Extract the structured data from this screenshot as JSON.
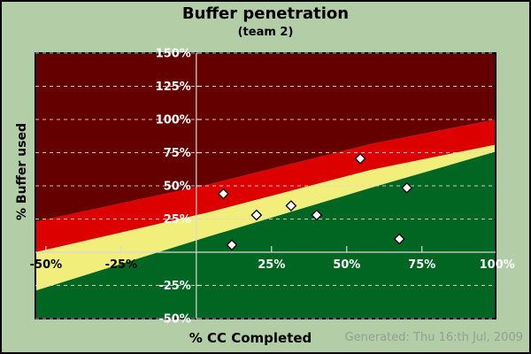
{
  "chart_data": {
    "type": "scatter",
    "title": "Buffer penetration",
    "subtitle": "(team 2)",
    "xlabel": "% CC Completed",
    "ylabel": "% Buffer used",
    "footer": "Generated: Thu 16:th Jul, 2009",
    "xlim": [
      -53.5,
      99.5
    ],
    "ylim": [
      -50,
      150
    ],
    "grid_on": true,
    "grid_y": [
      150,
      125,
      100,
      75,
      50,
      25,
      -25,
      -50
    ],
    "x_ticks": [
      {
        "value": -50,
        "label": "-50%",
        "label_color": "#000000"
      },
      {
        "value": -25,
        "label": "-25%",
        "label_color": "#000000"
      },
      {
        "value": 25,
        "label": "25%",
        "label_color": "#ffffff"
      },
      {
        "value": 50,
        "label": "50%",
        "label_color": "#ffffff"
      },
      {
        "value": 75,
        "label": "75%",
        "label_color": "#ffffff"
      },
      {
        "value": 100,
        "label": "100%",
        "label_color": "#ffffff"
      }
    ],
    "y_ticks": [
      {
        "value": 150,
        "label": "150%"
      },
      {
        "value": 125,
        "label": "125%"
      },
      {
        "value": 100,
        "label": "100%"
      },
      {
        "value": 75,
        "label": "75%"
      },
      {
        "value": 50,
        "label": "50%"
      },
      {
        "value": 25,
        "label": "25%"
      },
      {
        "value": -25,
        "label": "-25%"
      },
      {
        "value": -50,
        "label": "-50%"
      }
    ],
    "zones": [
      {
        "name": "zone-dark-red",
        "color": "#650000"
      },
      {
        "name": "zone-red",
        "color": "#dd0000"
      },
      {
        "name": "zone-yellow",
        "color": "#f2ee7c"
      },
      {
        "name": "zone-green",
        "color": "#006622"
      }
    ],
    "zone_boundaries": [
      {
        "name": "darkred-red-boundary",
        "points": [
          [
            -53.5,
            23
          ],
          [
            4,
            51
          ],
          [
            58,
            81.5
          ],
          [
            99.5,
            100
          ]
        ]
      },
      {
        "name": "red-yellow-boundary",
        "points": [
          [
            -53.5,
            0
          ],
          [
            4,
            30
          ],
          [
            58,
            62
          ],
          [
            99.5,
            81
          ]
        ]
      },
      {
        "name": "yellow-green-boundary",
        "points": [
          [
            -53.5,
            -29
          ],
          [
            4,
            11.7
          ],
          [
            58,
            48.5
          ],
          [
            99.5,
            75.7
          ]
        ]
      }
    ],
    "points": [
      [
        9,
        44
      ],
      [
        20,
        28
      ],
      [
        31.5,
        35
      ],
      [
        40,
        28
      ],
      [
        54.5,
        70.5
      ],
      [
        70,
        48.5
      ],
      [
        67.5,
        10
      ],
      [
        11.8,
        5.5
      ]
    ],
    "colors": {
      "background": "#b3cda7",
      "grid": "#d8d8d8",
      "axis": "#d8d8d8",
      "plot_border": "#000000",
      "point_fill": "#ffffff",
      "point_stroke": "#000000",
      "y_tick_label_color": "#ffffff",
      "footer_color": "#949e94",
      "title_color": "#000000"
    }
  }
}
